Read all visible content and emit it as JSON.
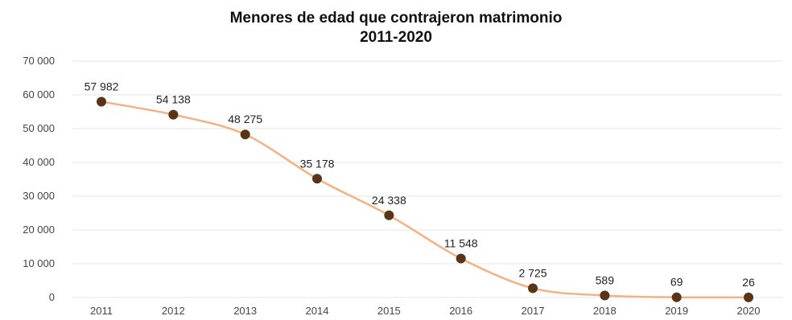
{
  "chart_data": {
    "type": "line",
    "title": "Menores de edad que contrajeron matrimonio",
    "subtitle": "2011-2020",
    "xlabel": "",
    "ylabel": "",
    "categories": [
      "2011",
      "2012",
      "2013",
      "2014",
      "2015",
      "2016",
      "2017",
      "2018",
      "2019",
      "2020"
    ],
    "values": [
      57982,
      54138,
      48275,
      35178,
      24338,
      11548,
      2725,
      589,
      69,
      26
    ],
    "data_labels": [
      "57 982",
      "54 138",
      "48 275",
      "35 178",
      "24 338",
      "11 548",
      "2 725",
      "589",
      "69",
      "26"
    ],
    "ylim": [
      0,
      70000
    ],
    "yticks": [
      0,
      10000,
      20000,
      30000,
      40000,
      50000,
      60000,
      70000
    ],
    "ytick_labels": [
      "0",
      "10 000",
      "20 000",
      "30 000",
      "40 000",
      "50 000",
      "60 000",
      "70 000"
    ],
    "grid": true,
    "legend": "none",
    "colors": {
      "line": "#f4b183",
      "marker": "#5a3417",
      "grid": "#e6e6e6",
      "text": "#222222"
    }
  }
}
